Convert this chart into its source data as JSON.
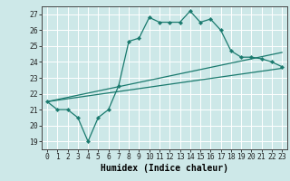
{
  "title": "",
  "xlabel": "Humidex (Indice chaleur)",
  "background_color": "#cde8e8",
  "grid_color": "#ffffff",
  "line_color": "#1a7a6e",
  "xlim": [
    -0.5,
    23.5
  ],
  "ylim": [
    18.5,
    27.5
  ],
  "xticks": [
    0,
    1,
    2,
    3,
    4,
    5,
    6,
    7,
    8,
    9,
    10,
    11,
    12,
    13,
    14,
    15,
    16,
    17,
    18,
    19,
    20,
    21,
    22,
    23
  ],
  "yticks": [
    19,
    20,
    21,
    22,
    23,
    24,
    25,
    26,
    27
  ],
  "main_series_x": [
    0,
    1,
    2,
    3,
    4,
    5,
    6,
    7,
    8,
    9,
    10,
    11,
    12,
    13,
    14,
    15,
    16,
    17,
    18,
    19,
    20,
    21,
    22,
    23
  ],
  "main_series_y": [
    21.5,
    21.0,
    21.0,
    20.5,
    19.0,
    20.5,
    21.0,
    22.5,
    25.3,
    25.5,
    26.8,
    26.5,
    26.5,
    26.5,
    27.2,
    26.5,
    26.7,
    26.0,
    24.7,
    24.3,
    24.3,
    24.2,
    24.0,
    23.7
  ],
  "lower_line_x": [
    0,
    23
  ],
  "lower_line_y": [
    21.5,
    23.6
  ],
  "upper_line_x": [
    0,
    23
  ],
  "upper_line_y": [
    21.5,
    24.6
  ],
  "marker_size": 2.2,
  "line_width": 0.9,
  "tick_fontsize": 5.8,
  "xlabel_fontsize": 7.0
}
